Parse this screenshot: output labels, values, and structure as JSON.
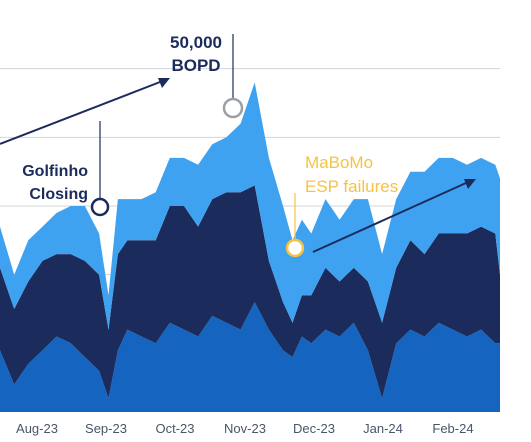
{
  "chart_data": {
    "type": "area",
    "stacked": true,
    "x_tick_labels": [
      "Aug-23",
      "Sep-23",
      "Oct-23",
      "Nov-23",
      "Dec-23",
      "Jan-24",
      "Feb-24"
    ],
    "y_gridlines": true,
    "y_range": [
      0,
      60000
    ],
    "x_range": [
      0,
      212
    ],
    "x": [
      0,
      6,
      12,
      18,
      24,
      30,
      36,
      42,
      46,
      50,
      54,
      60,
      66,
      72,
      78,
      84,
      90,
      96,
      102,
      108,
      114,
      120,
      124,
      128,
      132,
      138,
      144,
      150,
      156,
      162,
      168,
      174,
      180,
      186,
      192,
      198,
      204,
      210,
      212
    ],
    "series": [
      {
        "color": "#1565c0",
        "values": [
          9000,
          4000,
          7000,
          9000,
          11000,
          10000,
          8000,
          6000,
          2000,
          9000,
          12000,
          11000,
          10000,
          13000,
          12000,
          11000,
          14000,
          13000,
          12000,
          16000,
          12000,
          9000,
          8000,
          11000,
          10000,
          12000,
          11000,
          13000,
          9000,
          2000,
          10000,
          12000,
          11000,
          13000,
          12000,
          11000,
          12000,
          10000,
          10000
        ]
      },
      {
        "color": "#1a2b5c",
        "values": [
          12000,
          11000,
          12000,
          13000,
          12000,
          13000,
          14000,
          14000,
          10000,
          14000,
          13000,
          14000,
          15000,
          17000,
          18000,
          16000,
          17000,
          19000,
          20000,
          17000,
          10000,
          7000,
          5000,
          6000,
          7000,
          9000,
          8000,
          8000,
          10000,
          11000,
          11000,
          13000,
          12000,
          13000,
          14000,
          15000,
          15000,
          16000,
          10000
        ]
      },
      {
        "color": "#3fa2f0",
        "values": [
          6000,
          5000,
          6000,
          5000,
          6000,
          7000,
          8000,
          6000,
          5000,
          8000,
          6000,
          6000,
          7000,
          7000,
          7000,
          9000,
          8000,
          8000,
          10000,
          15000,
          15000,
          14000,
          12000,
          11000,
          9000,
          10000,
          9000,
          10000,
          12000,
          10000,
          10000,
          10000,
          12000,
          11000,
          11000,
          10000,
          10000,
          10000,
          14000
        ]
      }
    ]
  },
  "annotations": {
    "bopd_value": "50,000",
    "bopd_unit": "BOPD",
    "golfinho_line1": "Golfinho",
    "golfinho_line2": "Closing",
    "mabomo_line1": "MaBoMo",
    "mabomo_line2": "ESP failures"
  },
  "colors": {
    "annotation_dark": "#1a2b5c",
    "annotation_gold": "#f5c344",
    "grid": "#d0d4da",
    "tick_text": "#4a5568"
  }
}
